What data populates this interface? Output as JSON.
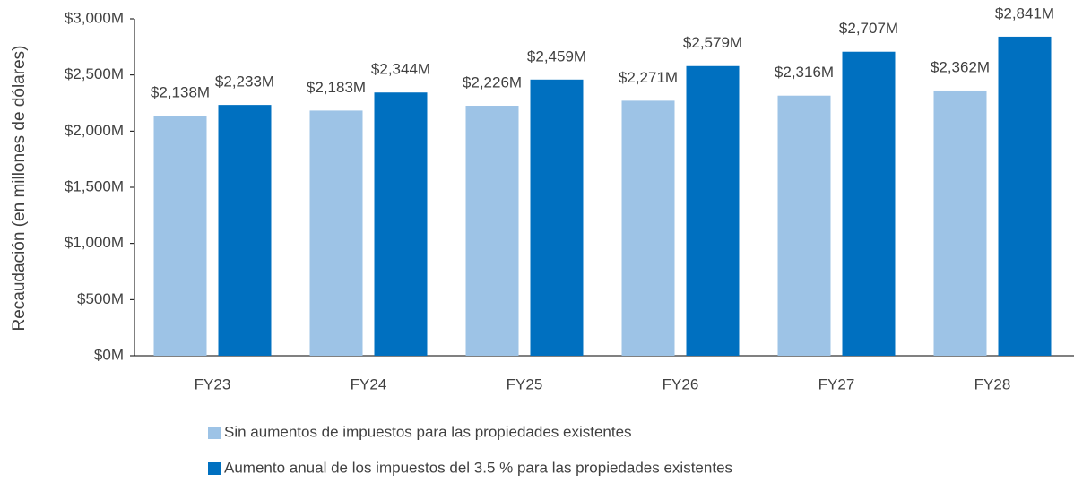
{
  "chart_data": {
    "type": "bar",
    "y_label": "Recaudación (en millones de dólares)",
    "categories": [
      "FY23",
      "FY24",
      "FY25",
      "FY26",
      "FY27",
      "FY28"
    ],
    "series": [
      {
        "name": "Sin aumentos de impuestos para las propiedades existentes",
        "color": "#9dc3e6",
        "values": [
          2138,
          2183,
          2226,
          2271,
          2316,
          2362
        ],
        "value_labels": [
          "$2,138M",
          "$2,183M",
          "$2,226M",
          "$2,271M",
          "$2,316M",
          "$2,362M"
        ]
      },
      {
        "name": "Aumento anual de los impuestos del 3.5 % para las propiedades existentes",
        "color": "#0070c0",
        "values": [
          2233,
          2344,
          2459,
          2579,
          2707,
          2841
        ],
        "value_labels": [
          "$2,233M",
          "$2,344M",
          "$2,459M",
          "$2,579M",
          "$2,707M",
          "$2,841M"
        ]
      }
    ],
    "ylim": [
      0,
      3000
    ],
    "yticks": [
      {
        "value": 0,
        "label": "$0M"
      },
      {
        "value": 500,
        "label": "$500M"
      },
      {
        "value": 1000,
        "label": "$1,000M"
      },
      {
        "value": 1500,
        "label": "$1,500M"
      },
      {
        "value": 2000,
        "label": "$2,000M"
      },
      {
        "value": 2500,
        "label": "$2,500M"
      },
      {
        "value": 3000,
        "label": "$3,000M"
      }
    ],
    "grid": false,
    "legend": "bottom"
  }
}
